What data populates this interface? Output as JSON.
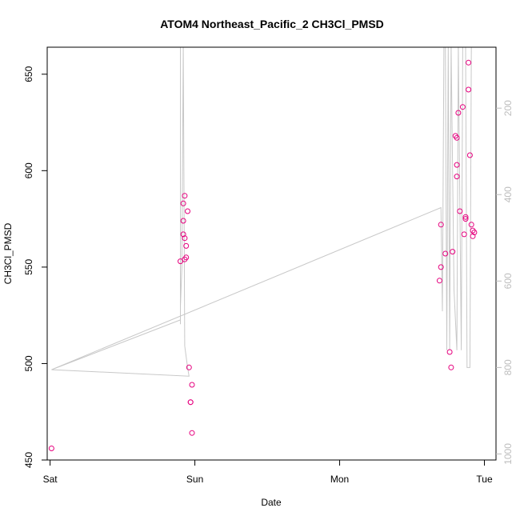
{
  "chart_data": {
    "type": "scatter",
    "title": "ATOM4 Northeast_Pacific_2 CH3Cl_PMSD",
    "xlabel": "Date",
    "ylabel": "CH3Cl_PMSD",
    "x_ticks": [
      "Sat",
      "Sun",
      "Mon",
      "Tue"
    ],
    "x_unit": "days since Sat 00:00",
    "xlim": [
      -0.02,
      3.08
    ],
    "ylim": [
      450,
      664
    ],
    "y_ticks": [
      450,
      500,
      550,
      600,
      650
    ],
    "y2_ticks": [
      200,
      400,
      600,
      800,
      1000
    ],
    "y2lim": [
      1014,
      59
    ],
    "y2_reversed": true,
    "grid": false,
    "colors": {
      "points": "#e6007e",
      "line": "#c8c8c8",
      "axis": "#000000",
      "right_axis": "#bdbdbd"
    },
    "series": [
      {
        "type": "scatter",
        "axis": "left",
        "points": [
          [
            0.01,
            456
          ],
          [
            0.9,
            553
          ],
          [
            0.92,
            567
          ],
          [
            0.92,
            583
          ],
          [
            0.92,
            574
          ],
          [
            0.93,
            587
          ],
          [
            0.93,
            565
          ],
          [
            0.94,
            561
          ],
          [
            0.94,
            555
          ],
          [
            0.93,
            554
          ],
          [
            0.95,
            579
          ],
          [
            0.96,
            498
          ],
          [
            0.97,
            480
          ],
          [
            0.97,
            480
          ],
          [
            0.98,
            489
          ],
          [
            0.98,
            464
          ],
          [
            2.7,
            572
          ],
          [
            2.7,
            550
          ],
          [
            2.69,
            543
          ],
          [
            2.73,
            557
          ],
          [
            2.76,
            506
          ],
          [
            2.77,
            498
          ],
          [
            2.78,
            558
          ],
          [
            2.8,
            618
          ],
          [
            2.81,
            617
          ],
          [
            2.81,
            603
          ],
          [
            2.81,
            597
          ],
          [
            2.82,
            630
          ],
          [
            2.83,
            579
          ],
          [
            2.85,
            633
          ],
          [
            2.86,
            567
          ],
          [
            2.87,
            575
          ],
          [
            2.87,
            576
          ],
          [
            2.89,
            656
          ],
          [
            2.89,
            642
          ],
          [
            2.9,
            608
          ],
          [
            2.91,
            572
          ],
          [
            2.92,
            569
          ],
          [
            2.92,
            566
          ],
          [
            2.93,
            568
          ]
        ]
      },
      {
        "type": "line",
        "axis": "right",
        "points": [
          [
            0.01,
            805
          ],
          [
            0.96,
            820
          ],
          [
            0.95,
            800
          ],
          [
            0.93,
            750
          ],
          [
            0.92,
            55
          ],
          [
            0.91,
            570
          ],
          [
            0.9,
            660
          ],
          [
            0.9,
            700
          ],
          [
            0.9,
            55
          ],
          [
            0.9,
            690
          ],
          [
            0.01,
            805
          ],
          [
            2.7,
            430
          ],
          [
            2.71,
            670
          ],
          [
            2.72,
            55
          ],
          [
            2.73,
            55
          ],
          [
            2.74,
            760
          ],
          [
            2.75,
            55
          ],
          [
            2.76,
            760
          ],
          [
            2.77,
            55
          ],
          [
            2.79,
            620
          ],
          [
            2.81,
            760
          ],
          [
            2.82,
            55
          ],
          [
            2.84,
            760
          ],
          [
            2.85,
            55
          ],
          [
            2.87,
            55
          ],
          [
            2.88,
            800
          ],
          [
            2.9,
            800
          ],
          [
            2.91,
            55
          ],
          [
            2.93,
            55
          ]
        ]
      }
    ]
  }
}
